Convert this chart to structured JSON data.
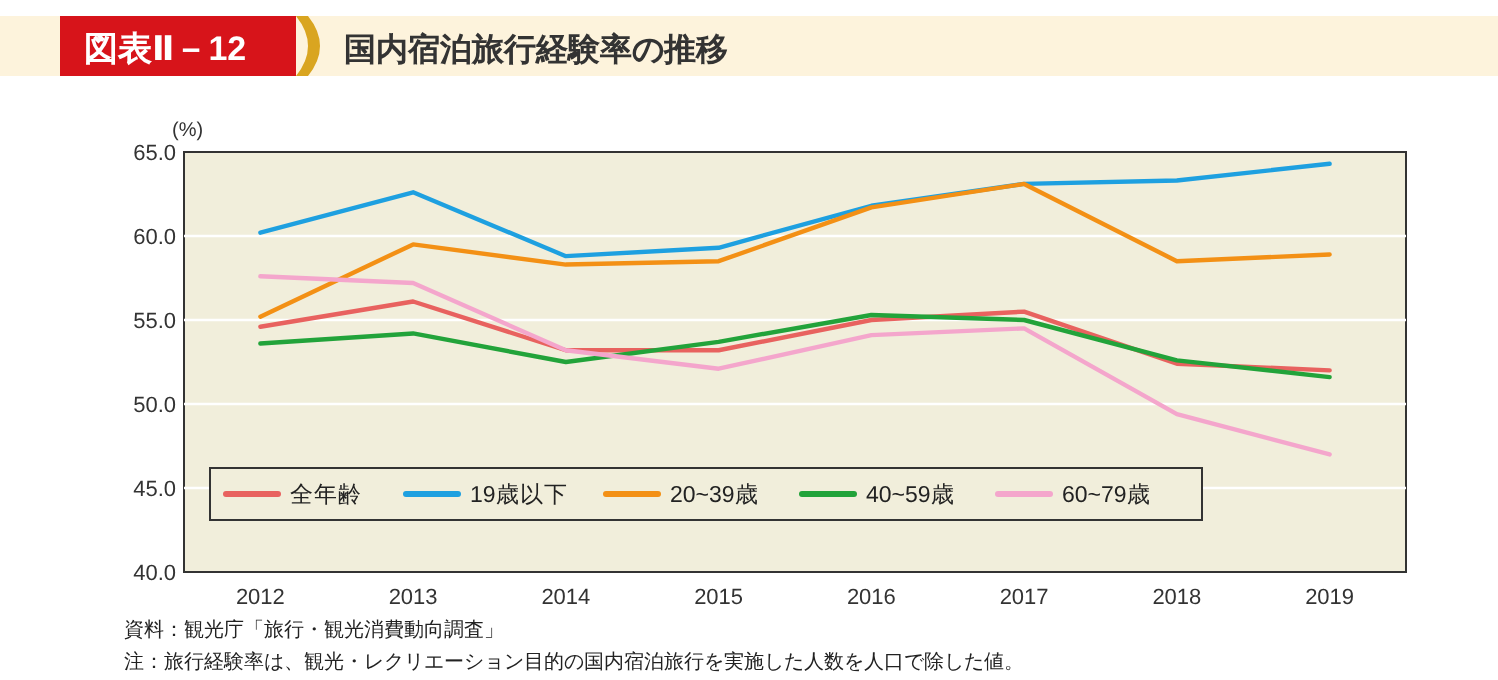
{
  "chart_data": {
    "type": "line",
    "subtitle": "図表Ⅱ－12",
    "title": "国内宿泊旅行経験率の推移",
    "ylabel": "(%)",
    "categories": [
      "2012",
      "2013",
      "2014",
      "2015",
      "2016",
      "2017",
      "2018",
      "2019"
    ],
    "series": [
      {
        "name": "全年齢",
        "color": "#e8625f",
        "values": [
          54.6,
          56.1,
          53.2,
          53.2,
          55.0,
          55.5,
          52.4,
          52.0
        ]
      },
      {
        "name": "19歳以下",
        "color": "#1ea0e0",
        "values": [
          60.2,
          62.6,
          58.8,
          59.3,
          61.8,
          63.1,
          63.3,
          64.3
        ]
      },
      {
        "name": "20~39歳",
        "color": "#f39015",
        "values": [
          55.2,
          59.5,
          58.3,
          58.5,
          61.7,
          63.1,
          58.5,
          58.9
        ]
      },
      {
        "name": "40~59歳",
        "color": "#22a33a",
        "values": [
          53.6,
          54.2,
          52.5,
          53.7,
          55.3,
          55.0,
          52.6,
          51.6
        ]
      },
      {
        "name": "60~79歳",
        "color": "#f4a6cc",
        "values": [
          57.6,
          57.2,
          53.2,
          52.1,
          54.1,
          54.5,
          49.4,
          47.0
        ]
      }
    ],
    "ylim": [
      40,
      65
    ],
    "yticks": [
      {
        "value": 40,
        "label": "40.0"
      },
      {
        "value": 45,
        "label": "45.0"
      },
      {
        "value": 50,
        "label": "50.0"
      },
      {
        "value": 55,
        "label": "55.0"
      },
      {
        "value": 60,
        "label": "60.0"
      },
      {
        "value": 65,
        "label": "65.0"
      }
    ],
    "grid": "y",
    "legend": "bottom left",
    "marker": "none",
    "line_style": "solid",
    "annotations": [
      "資料：観光庁「旅行・観光消費動向調査」",
      "注：旅行経験率は、観光・レクリエーション目的の国内宿泊旅行を実施した人数を人口で除した値。"
    ]
  }
}
